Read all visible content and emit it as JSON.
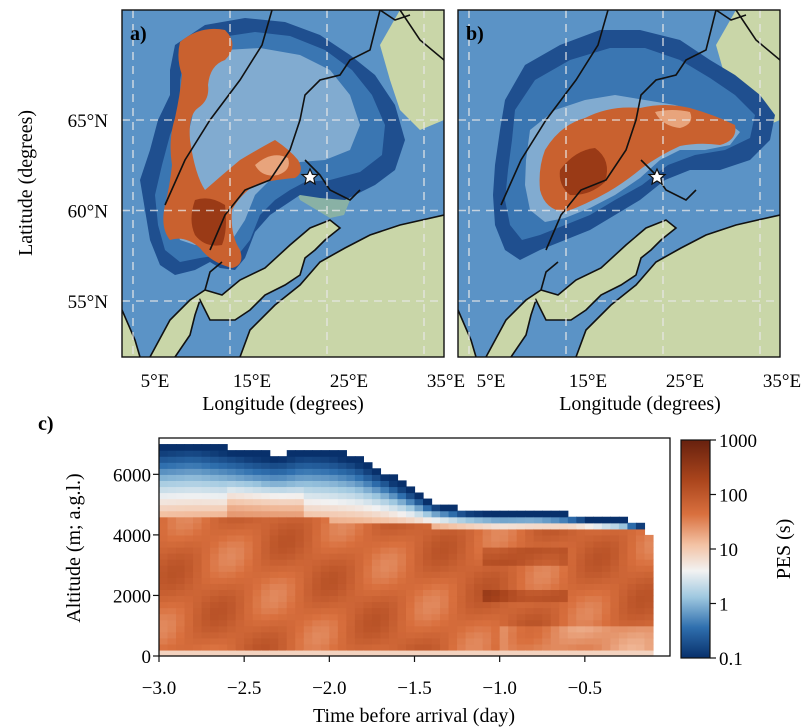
{
  "panels": {
    "a": {
      "label": "a)"
    },
    "b": {
      "label": "b)"
    },
    "c": {
      "label": "c)"
    }
  },
  "map": {
    "ylabel": "Latitude (degrees)",
    "xlabel": "Longitude (degrees)",
    "lat_ticks": [
      "65°N",
      "60°N",
      "55°N"
    ],
    "lon_ticks": [
      "5°E",
      "15°E",
      "25°E",
      "35°E"
    ],
    "lat_values": [
      65,
      60,
      55
    ],
    "lon_values": [
      5,
      15,
      25,
      35
    ],
    "colors": {
      "sea": "#5b93c6",
      "land": "#c9d6a8",
      "coast": "#111111",
      "grid": "#e8e8e8"
    }
  },
  "chart_data": {
    "type": "heatmap",
    "xlabel": "Time before arrival (day)",
    "ylabel": "Altitude (m; a.g.l.)",
    "xlim": [
      -3.0,
      0.0
    ],
    "ylim": [
      0,
      7200
    ],
    "x_ticks": [
      -3.0,
      -2.5,
      -2.0,
      -1.5,
      -1.0,
      -0.5
    ],
    "x_tick_labels": [
      "−3.0",
      "−2.5",
      "−2.0",
      "−1.5",
      "−1.0",
      "−0.5"
    ],
    "y_ticks": [
      0,
      2000,
      4000,
      6000
    ],
    "y_tick_labels": [
      "0",
      "2000",
      "4000",
      "6000"
    ],
    "colorbar": {
      "label": "PES (s)",
      "scale": "log",
      "ticks": [
        0.1,
        1,
        10,
        100,
        1000
      ],
      "tick_labels": [
        "0.1",
        "1",
        "10",
        "100",
        "1000"
      ],
      "cmap": [
        "#08306b",
        "#2f6fae",
        "#9fc8e0",
        "#f2f2f2",
        "#f3c2a4",
        "#d9703e",
        "#a9441c",
        "#67210e"
      ]
    },
    "plume_top_m": [
      [
        -3.0,
        6900
      ],
      [
        -2.8,
        7000
      ],
      [
        -2.6,
        6800
      ],
      [
        -2.45,
        6650
      ],
      [
        -2.3,
        6550
      ],
      [
        -2.15,
        6750
      ],
      [
        -2.0,
        6700
      ],
      [
        -1.85,
        6500
      ],
      [
        -1.7,
        6050
      ],
      [
        -1.55,
        5550
      ],
      [
        -1.4,
        5000
      ],
      [
        -1.2,
        4750
      ],
      [
        -1.0,
        4700
      ],
      [
        -0.8,
        4700
      ],
      [
        -0.6,
        4600
      ],
      [
        -0.4,
        4450
      ],
      [
        -0.25,
        4400
      ],
      [
        -0.15,
        4200
      ],
      [
        -0.12,
        3800
      ]
    ],
    "boundary_layer_top_m": [
      [
        -3.0,
        4600
      ],
      [
        -2.6,
        4650
      ],
      [
        -2.2,
        4550
      ],
      [
        -1.8,
        4450
      ],
      [
        -1.4,
        4300
      ],
      [
        -1.0,
        4200
      ],
      [
        -0.6,
        4250
      ],
      [
        -0.3,
        4200
      ],
      [
        -0.15,
        4100
      ]
    ]
  }
}
